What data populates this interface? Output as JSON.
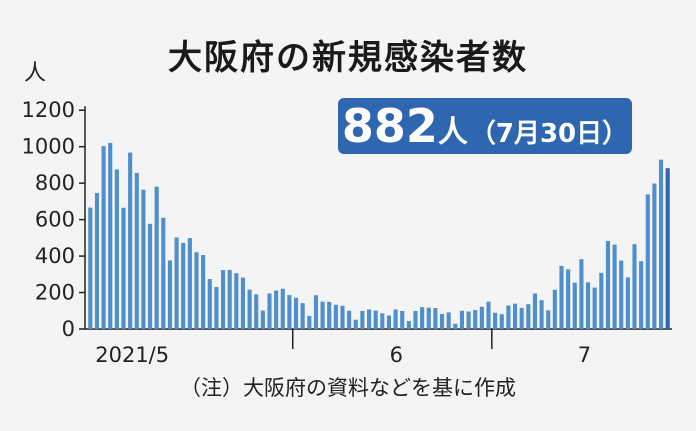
{
  "chart_data": {
    "type": "bar",
    "title": "大阪府の新規感染者数",
    "ylabel": "人",
    "ylim": [
      0,
      1300
    ],
    "yticks": [
      0,
      200,
      400,
      600,
      800,
      1000,
      1200
    ],
    "x_tick_labels": [
      "2021/5",
      "6",
      "7"
    ],
    "highlight": {
      "value": "882",
      "unit": "人",
      "date": "（7月30日）"
    },
    "note": "（注）大阪府の資料などを基に作成",
    "colors": {
      "bar": "#4f8fce",
      "last_bar": "#2f66b0",
      "highlight_bg": "#2f66b0"
    },
    "values": [
      666,
      746,
      1003,
      1021,
      875,
      665,
      968,
      856,
      764,
      577,
      781,
      610,
      376,
      502,
      472,
      499,
      421,
      406,
      274,
      230,
      323,
      324,
      306,
      282,
      216,
      190,
      101,
      195,
      211,
      221,
      186,
      171,
      142,
      72,
      185,
      150,
      149,
      133,
      127,
      100,
      51,
      99,
      107,
      101,
      86,
      74,
      107,
      99,
      44,
      99,
      120,
      117,
      115,
      82,
      91,
      29,
      100,
      96,
      104,
      122,
      150,
      89,
      81,
      129,
      139,
      116,
      136,
      195,
      158,
      102,
      215,
      346,
      327,
      254,
      383,
      256,
      227,
      308,
      483,
      463,
      375,
      283,
      465,
      372,
      738,
      798,
      929,
      882
    ]
  }
}
